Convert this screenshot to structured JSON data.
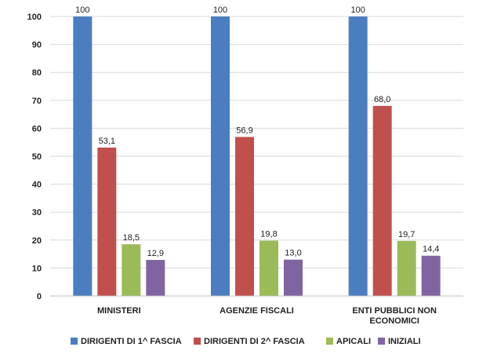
{
  "chart_data": {
    "type": "bar",
    "title": "",
    "xlabel": "",
    "ylabel": "",
    "ylim": [
      0,
      100
    ],
    "yticks": [
      0,
      10,
      20,
      30,
      40,
      50,
      60,
      70,
      80,
      90,
      100
    ],
    "grid": true,
    "legend_position": "bottom",
    "categories": [
      [
        "MINISTERI"
      ],
      [
        "AGENZIE FISCALI"
      ],
      [
        "ENTI PUBBLICI NON",
        "ECONOMICI"
      ]
    ],
    "series": [
      {
        "name": "DIRIGENTI DI 1^ FASCIA",
        "color": "#4a7ec0",
        "values": [
          100,
          100,
          100
        ],
        "labels": [
          "100",
          "100",
          "100"
        ]
      },
      {
        "name": "DIRIGENTI DI 2^ FASCIA",
        "color": "#c0504d",
        "values": [
          53.1,
          56.9,
          68.0
        ],
        "labels": [
          "53,1",
          "56,9",
          "68,0"
        ]
      },
      {
        "name": "APICALI",
        "color": "#9bbb59",
        "values": [
          18.5,
          19.8,
          19.7
        ],
        "labels": [
          "18,5",
          "19,8",
          "19,7"
        ]
      },
      {
        "name": "INIZIALI",
        "color": "#8064a2",
        "values": [
          12.9,
          13.0,
          14.4
        ],
        "labels": [
          "12,9",
          "13,0",
          "14,4"
        ]
      }
    ]
  }
}
